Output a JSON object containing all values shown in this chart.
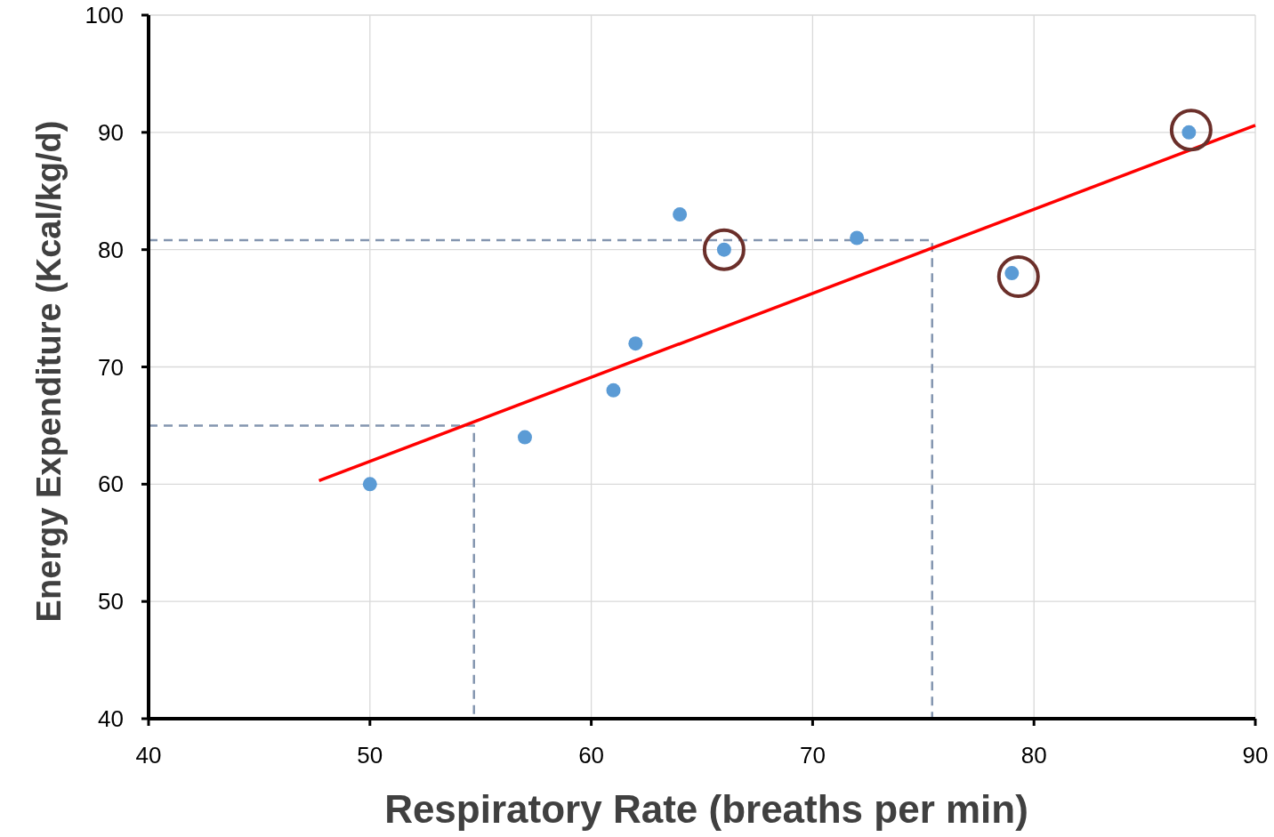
{
  "chart_data": {
    "type": "scatter",
    "xlabel": "Respiratory Rate (breaths per min)",
    "ylabel": "Energy Expenditure (Kcal/kg/d)",
    "xlim": [
      40,
      90
    ],
    "ylim": [
      40,
      100
    ],
    "xticks": [
      40,
      50,
      60,
      70,
      80,
      90
    ],
    "yticks": [
      40,
      50,
      60,
      70,
      80,
      90,
      100
    ],
    "grid": true,
    "series": [
      {
        "type": "line",
        "line_style": "dashed",
        "color": "#8496b0",
        "x": [
          40,
          54.7,
          54.7
        ],
        "values": [
          65,
          65,
          40
        ]
      },
      {
        "type": "line",
        "line_style": "dashed",
        "color": "#8496b0",
        "x": [
          40,
          75.4,
          75.4
        ],
        "values": [
          80.8,
          80.8,
          40
        ]
      },
      {
        "type": "line",
        "line_style": "solid",
        "color": "#ff0000",
        "x": [
          47.7,
          90
        ],
        "values": [
          60.3,
          90.6
        ]
      },
      {
        "marker": "circle",
        "color": "#5b9bd5",
        "x": [
          50,
          57,
          61,
          62,
          64,
          66,
          72,
          79,
          87
        ],
        "values": [
          60,
          64,
          68,
          72,
          83,
          80,
          81,
          78,
          90
        ]
      },
      {
        "marker": "circle",
        "color": "#6b2f2a",
        "x": [
          66,
          79.3,
          87.1
        ],
        "values": [
          80,
          77.7,
          90.2
        ]
      }
    ]
  }
}
